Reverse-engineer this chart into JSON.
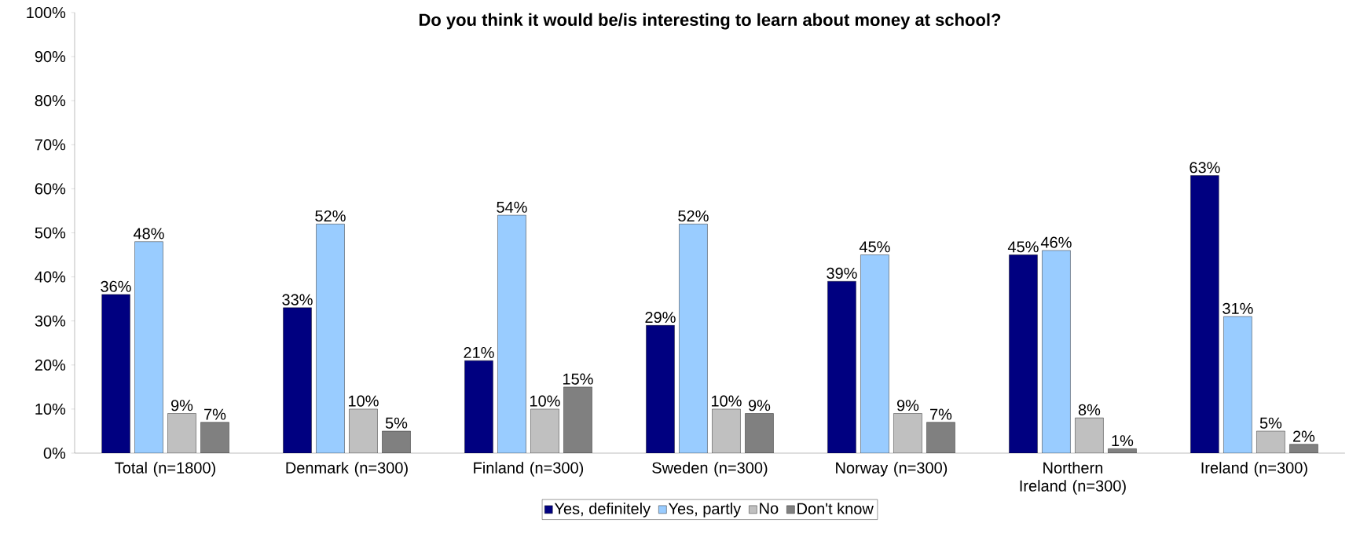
{
  "chart_data": {
    "type": "bar",
    "title": "Do you think it would be/is interesting to learn about money at school?",
    "categories": [
      "Total (n=1800)",
      "Denmark (n=300)",
      "Finland (n=300)",
      "Sweden (n=300)",
      "Norway (n=300)",
      "Northern Ireland (n=300)",
      "Ireland (n=300)"
    ],
    "series": [
      {
        "name": "Yes, definitely",
        "color": "#000080",
        "values": [
          36,
          33,
          21,
          29,
          39,
          45,
          63
        ],
        "value_labels": [
          "36%",
          "33%",
          "21%",
          "29%",
          "39%",
          "45%",
          "63%"
        ]
      },
      {
        "name": "Yes, partly",
        "color": "#99ccff",
        "values": [
          48,
          52,
          54,
          52,
          45,
          46,
          31
        ],
        "value_labels": [
          "48%",
          "52%",
          "54%",
          "52%",
          "45%",
          "46%",
          "31%"
        ]
      },
      {
        "name": "No",
        "color": "#c0c0c0",
        "values": [
          9,
          10,
          10,
          10,
          9,
          8,
          5
        ],
        "value_labels": [
          "9%",
          "10%",
          "10%",
          "10%",
          "9%",
          "8%",
          "5%"
        ]
      },
      {
        "name": "Don't know",
        "color": "#808080",
        "values": [
          7,
          5,
          15,
          9,
          7,
          1,
          2
        ],
        "value_labels": [
          "7%",
          "5%",
          "15%",
          "9%",
          "7%",
          "1%",
          "2%"
        ]
      }
    ],
    "ylim": [
      0,
      100
    ],
    "yticks": [
      {
        "value": 0,
        "label": "0%"
      },
      {
        "value": 10,
        "label": "10%"
      },
      {
        "value": 20,
        "label": "20%"
      },
      {
        "value": 30,
        "label": "30%"
      },
      {
        "value": 40,
        "label": "40%"
      },
      {
        "value": 50,
        "label": "50%"
      },
      {
        "value": 60,
        "label": "60%"
      },
      {
        "value": 70,
        "label": "70%"
      },
      {
        "value": 80,
        "label": "80%"
      },
      {
        "value": 90,
        "label": "90%"
      },
      {
        "value": 100,
        "label": "100%"
      }
    ],
    "legend": "bottom",
    "grid": false
  }
}
